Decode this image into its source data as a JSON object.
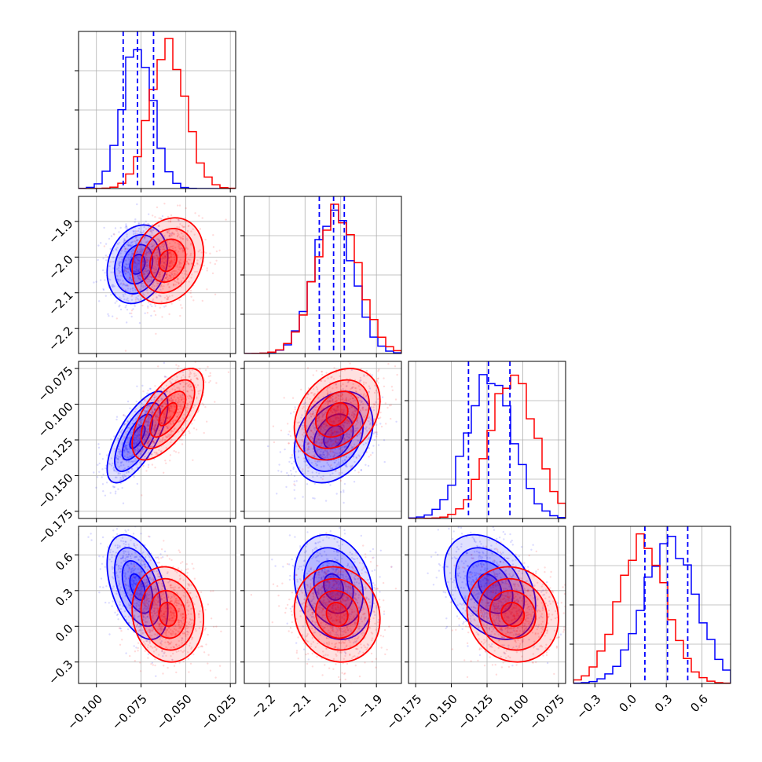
{
  "chart_data": {
    "type": "corner",
    "title": "",
    "parameters": 4,
    "colors": {
      "series_a": "#0000ff",
      "series_b": "#ff0000",
      "grid": "#b0b0b0"
    },
    "grid": true,
    "series": [
      {
        "color": "#0000ff",
        "means": [
          -0.077,
          -2.02,
          -0.123,
          0.33
        ],
        "sds": [
          0.0085,
          0.055,
          0.016,
          0.22
        ],
        "correlations": {
          "p2_p1": 0.2,
          "p3_p1": 0.7,
          "p3_p2": 0.3,
          "p4_p1": -0.45,
          "p4_p2": -0.2,
          "p4_p3": -0.35
        }
      },
      {
        "color": "#ff0000",
        "means": [
          -0.06,
          -2.01,
          -0.107,
          0.1
        ],
        "sds": [
          0.01,
          0.06,
          0.016,
          0.2
        ],
        "correlations": {
          "p2_p1": 0.2,
          "p3_p1": 0.65,
          "p3_p2": 0.3,
          "p4_p1": -0.1,
          "p4_p2": -0.1,
          "p4_p3": -0.1
        }
      }
    ],
    "quantile_lines": {
      "color": "#0000ff",
      "values": [
        [
          -0.085,
          -0.077,
          -0.068
        ],
        [
          -2.06,
          -2.02,
          -1.99
        ],
        [
          -0.138,
          -0.124,
          -0.109
        ],
        [
          0.12,
          0.31,
          0.48
        ]
      ]
    },
    "axes": [
      {
        "range": [
          -0.11,
          -0.022
        ],
        "ticks": [
          -0.1,
          -0.075,
          -0.05,
          -0.025
        ],
        "tick_labels": [
          "−0.100",
          "−0.075",
          "−0.050",
          "−0.025"
        ]
      },
      {
        "range": [
          -2.27,
          -1.83
        ],
        "ticks": [
          -2.2,
          -2.1,
          -2.0,
          -1.9
        ],
        "tick_labels": [
          "−2.2",
          "−2.1",
          "−2.0",
          "−1.9"
        ]
      },
      {
        "range": [
          -0.18,
          -0.07
        ],
        "ticks": [
          -0.175,
          -0.15,
          -0.125,
          -0.1,
          -0.075
        ],
        "tick_labels": [
          "−0.175",
          "−0.150",
          "−0.125",
          "−0.100",
          "−0.075"
        ]
      },
      {
        "range": [
          -0.48,
          0.84
        ],
        "ticks": [
          -0.3,
          0.0,
          0.3,
          0.6
        ],
        "tick_labels": [
          "−0.3",
          "0.0",
          "0.3",
          "0.6"
        ]
      }
    ],
    "contour_levels_sigma": [
      0.5,
      1.0,
      1.5,
      2.0
    ]
  }
}
